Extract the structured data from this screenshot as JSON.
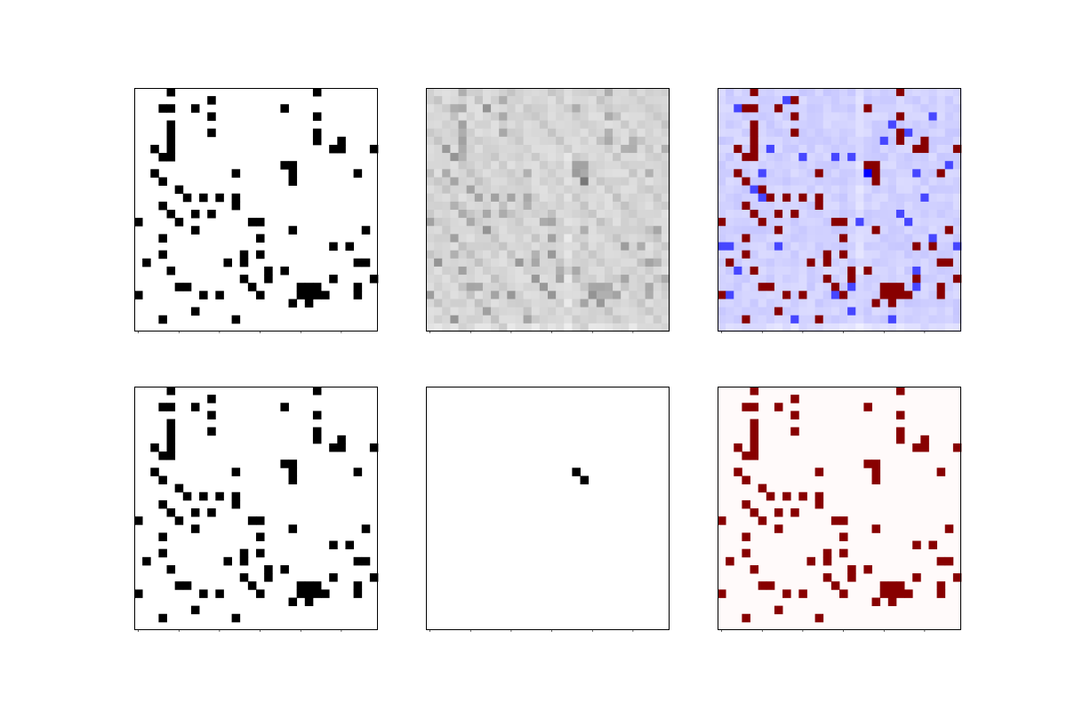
{
  "chart_data": {
    "type": "heatmap",
    "grid_size": 30,
    "layout": {
      "rows": 2,
      "cols": 3
    },
    "axes": {
      "tick_labels": "none",
      "x_ticks": [
        0,
        5,
        10,
        15,
        20,
        25
      ],
      "y_ticks": []
    },
    "colormaps": {
      "binary": [
        "#ffffff",
        "#000000"
      ],
      "gray_r": [
        "#ffffff",
        "#000000"
      ],
      "seismic": [
        "#0000ff",
        "#ffffff",
        "#c80000",
        "#880000"
      ]
    },
    "sparse_matrix": [
      [
        0,
        4
      ],
      [
        0,
        22
      ],
      [
        1,
        9
      ],
      [
        2,
        3
      ],
      [
        2,
        4
      ],
      [
        2,
        7
      ],
      [
        2,
        18
      ],
      [
        3,
        9
      ],
      [
        3,
        22
      ],
      [
        4,
        4
      ],
      [
        5,
        4
      ],
      [
        5,
        9
      ],
      [
        5,
        22
      ],
      [
        6,
        4
      ],
      [
        6,
        22
      ],
      [
        6,
        25
      ],
      [
        7,
        2
      ],
      [
        7,
        4
      ],
      [
        7,
        24
      ],
      [
        7,
        25
      ],
      [
        7,
        29
      ],
      [
        8,
        3
      ],
      [
        8,
        4
      ],
      [
        9,
        18
      ],
      [
        9,
        19
      ],
      [
        10,
        2
      ],
      [
        10,
        12
      ],
      [
        10,
        19
      ],
      [
        10,
        27
      ],
      [
        11,
        3
      ],
      [
        11,
        19
      ],
      [
        12,
        5
      ],
      [
        13,
        6
      ],
      [
        13,
        8
      ],
      [
        13,
        10
      ],
      [
        13,
        12
      ],
      [
        14,
        3
      ],
      [
        14,
        12
      ],
      [
        15,
        4
      ],
      [
        15,
        7
      ],
      [
        15,
        9
      ],
      [
        16,
        0
      ],
      [
        16,
        5
      ],
      [
        16,
        14
      ],
      [
        16,
        15
      ],
      [
        17,
        7
      ],
      [
        17,
        19
      ],
      [
        17,
        28
      ],
      [
        18,
        3
      ],
      [
        18,
        15
      ],
      [
        19,
        24
      ],
      [
        19,
        26
      ],
      [
        20,
        3
      ],
      [
        20,
        13
      ],
      [
        20,
        15
      ],
      [
        21,
        1
      ],
      [
        21,
        11
      ],
      [
        21,
        13
      ],
      [
        21,
        27
      ],
      [
        21,
        28
      ],
      [
        22,
        4
      ],
      [
        22,
        16
      ],
      [
        22,
        18
      ],
      [
        23,
        13
      ],
      [
        23,
        16
      ],
      [
        23,
        24
      ],
      [
        23,
        29
      ],
      [
        24,
        5
      ],
      [
        24,
        6
      ],
      [
        24,
        14
      ],
      [
        24,
        20
      ],
      [
        24,
        21
      ],
      [
        24,
        22
      ],
      [
        24,
        27
      ],
      [
        25,
        0
      ],
      [
        25,
        8
      ],
      [
        25,
        10
      ],
      [
        25,
        15
      ],
      [
        25,
        20
      ],
      [
        25,
        21
      ],
      [
        25,
        22
      ],
      [
        25,
        23
      ],
      [
        25,
        27
      ],
      [
        26,
        19
      ],
      [
        26,
        21
      ],
      [
        27,
        7
      ],
      [
        28,
        3
      ],
      [
        28,
        12
      ]
    ],
    "overlap_matrix": [
      [
        10,
        18
      ],
      [
        11,
        19
      ]
    ],
    "panels": [
      {
        "row": 0,
        "col": 0,
        "colormap": "binary",
        "content": "sparse_matrix"
      },
      {
        "row": 0,
        "col": 1,
        "colormap": "gray_r",
        "content": "intensity_matrix"
      },
      {
        "row": 0,
        "col": 2,
        "colormap": "seismic",
        "content": "signed_matrix"
      },
      {
        "row": 1,
        "col": 0,
        "colormap": "binary",
        "content": "sparse_matrix"
      },
      {
        "row": 1,
        "col": 1,
        "colormap": "binary",
        "content": "overlap_matrix"
      },
      {
        "row": 1,
        "col": 2,
        "colormap": "seismic",
        "content": "sparse_matrix"
      }
    ]
  }
}
